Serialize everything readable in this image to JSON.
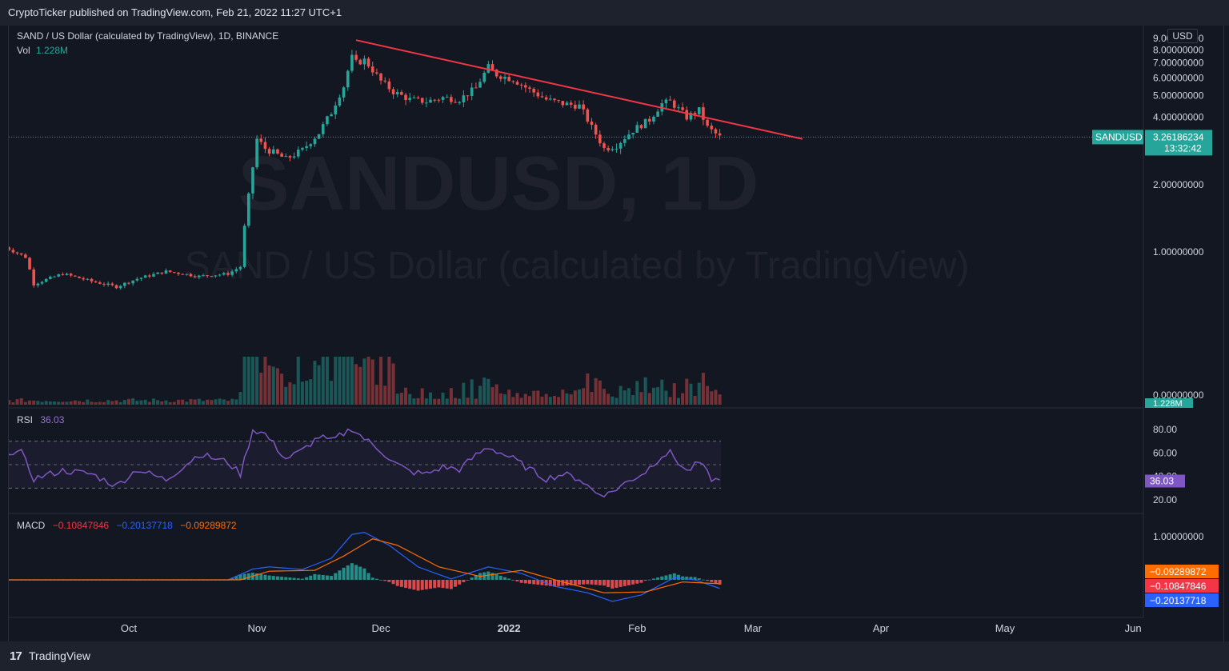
{
  "header": {
    "publish_text": "CryptoTicker published on TradingView.com, Feb 21, 2022 11:27 UTC+1"
  },
  "footer": {
    "brand": "TradingView",
    "logo_glyph": "17"
  },
  "chart_header": {
    "symbol_line": "SAND / US Dollar (calculated by TradingView), 1D, BINANCE",
    "vol_label": "Vol",
    "vol_value": "1.228M",
    "rsi_label": "RSI",
    "rsi_value": "36.03",
    "macd_label": "MACD",
    "macd_values": [
      "−0.10847846",
      "−0.20137718",
      "−0.09289872"
    ],
    "currency_button": "USD"
  },
  "watermark": {
    "line1": "SANDUSD, 1D",
    "line2": "SAND / US Dollar (calculated by TradingView)"
  },
  "colors": {
    "up": "#26a69a",
    "down": "#ef5350",
    "trendline": "#f23645",
    "rsi": "#7e57c2",
    "macd": "#2962ff",
    "signal": "#ff6d00",
    "background": "#131722"
  },
  "chart_data": {
    "type": "candlestick",
    "x_ticks": [
      "Oct",
      "Nov",
      "Dec",
      "2022",
      "Feb",
      "Mar",
      "Apr",
      "May",
      "Jun"
    ],
    "price_axis": {
      "ticks": [
        "9.00000000",
        "8.00000000",
        "7.00000000",
        "6.00000000",
        "5.00000000",
        "4.00000000",
        "2.00000000",
        "1.00000000",
        "0.00000000"
      ],
      "ylim": [
        0,
        9.2
      ],
      "scale": "log"
    },
    "last_price": {
      "symbol": "SANDUSD",
      "price": "3.26186234",
      "countdown": "13:32:42"
    },
    "volume_badge": "1.228M",
    "price_path": [
      [
        "2021-09-01",
        1.05
      ],
      [
        "2021-09-06",
        0.95
      ],
      [
        "2021-09-08",
        0.72
      ],
      [
        "2021-09-15",
        0.8
      ],
      [
        "2021-09-22",
        0.74
      ],
      [
        "2021-09-28",
        0.7
      ],
      [
        "2021-10-03",
        0.76
      ],
      [
        "2021-10-10",
        0.82
      ],
      [
        "2021-10-18",
        0.78
      ],
      [
        "2021-10-25",
        0.8
      ],
      [
        "2021-10-28",
        0.86
      ],
      [
        "2021-10-29",
        1.3
      ],
      [
        "2021-10-30",
        1.8
      ],
      [
        "2021-10-31",
        2.4
      ],
      [
        "2021-11-01",
        3.2
      ],
      [
        "2021-11-03",
        2.9
      ],
      [
        "2021-11-08",
        2.6
      ],
      [
        "2021-11-12",
        2.85
      ],
      [
        "2021-11-16",
        3.4
      ],
      [
        "2021-11-19",
        4.2
      ],
      [
        "2021-11-22",
        5.5
      ],
      [
        "2021-11-24",
        7.4
      ],
      [
        "2021-11-25",
        7.0
      ],
      [
        "2021-11-27",
        7.2
      ],
      [
        "2021-11-29",
        6.5
      ],
      [
        "2021-12-01",
        5.8
      ],
      [
        "2021-12-04",
        5.2
      ],
      [
        "2021-12-08",
        4.8
      ],
      [
        "2021-12-12",
        4.7
      ],
      [
        "2021-12-16",
        4.9
      ],
      [
        "2021-12-20",
        4.8
      ],
      [
        "2021-12-24",
        5.4
      ],
      [
        "2021-12-27",
        6.7
      ],
      [
        "2021-12-29",
        6.2
      ],
      [
        "2022-01-02",
        5.9
      ],
      [
        "2022-01-06",
        5.3
      ],
      [
        "2022-01-10",
        4.8
      ],
      [
        "2022-01-14",
        4.6
      ],
      [
        "2022-01-18",
        4.5
      ],
      [
        "2022-01-21",
        3.6
      ],
      [
        "2022-01-24",
        2.9
      ],
      [
        "2022-01-27",
        3.0
      ],
      [
        "2022-01-31",
        3.5
      ],
      [
        "2022-02-04",
        3.9
      ],
      [
        "2022-02-07",
        4.6
      ],
      [
        "2022-02-09",
        4.7
      ],
      [
        "2022-02-13",
        4.0
      ],
      [
        "2022-02-16",
        4.3
      ],
      [
        "2022-02-18",
        3.6
      ],
      [
        "2022-02-21",
        3.26
      ]
    ],
    "trendline": {
      "start": [
        "2021-11-25",
        8.84
      ],
      "end": [
        "2022-03-13",
        3.2
      ]
    },
    "rsi": {
      "ticks": [
        "80.00",
        "60.00",
        "40.00",
        "20.00"
      ],
      "ylim": [
        20,
        80
      ],
      "bands": [
        30,
        50,
        70
      ],
      "series": [
        [
          "2021-09-01",
          62
        ],
        [
          "2021-09-05",
          60
        ],
        [
          "2021-09-08",
          38
        ],
        [
          "2021-09-15",
          45
        ],
        [
          "2021-09-22",
          42
        ],
        [
          "2021-09-28",
          32
        ],
        [
          "2021-10-03",
          46
        ],
        [
          "2021-10-10",
          37
        ],
        [
          "2021-10-18",
          59
        ],
        [
          "2021-10-25",
          52
        ],
        [
          "2021-10-28",
          42
        ],
        [
          "2021-10-31",
          80
        ],
        [
          "2021-11-03",
          76
        ],
        [
          "2021-11-08",
          55
        ],
        [
          "2021-11-12",
          62
        ],
        [
          "2021-11-16",
          74
        ],
        [
          "2021-11-19",
          70
        ],
        [
          "2021-11-24",
          81
        ],
        [
          "2021-11-27",
          72
        ],
        [
          "2021-12-01",
          62
        ],
        [
          "2021-12-04",
          52
        ],
        [
          "2021-12-08",
          44
        ],
        [
          "2021-12-12",
          42
        ],
        [
          "2021-12-16",
          48
        ],
        [
          "2021-12-20",
          46
        ],
        [
          "2021-12-24",
          58
        ],
        [
          "2021-12-27",
          65
        ],
        [
          "2022-01-02",
          55
        ],
        [
          "2022-01-06",
          46
        ],
        [
          "2022-01-10",
          38
        ],
        [
          "2022-01-14",
          42
        ],
        [
          "2022-01-18",
          38
        ],
        [
          "2022-01-22",
          26
        ],
        [
          "2022-01-25",
          25
        ],
        [
          "2022-01-29",
          34
        ],
        [
          "2022-02-03",
          44
        ],
        [
          "2022-02-07",
          58
        ],
        [
          "2022-02-09",
          60
        ],
        [
          "2022-02-13",
          44
        ],
        [
          "2022-02-16",
          52
        ],
        [
          "2022-02-19",
          38
        ],
        [
          "2022-02-21",
          36.03
        ]
      ]
    },
    "macd": {
      "ticks": [
        "1.00000000"
      ],
      "ylim": [
        -0.5,
        1.5
      ],
      "macd_line": [
        [
          "2021-09-01",
          0.0
        ],
        [
          "2021-10-25",
          0.0
        ],
        [
          "2021-10-31",
          0.25
        ],
        [
          "2021-11-04",
          0.3
        ],
        [
          "2021-11-12",
          0.24
        ],
        [
          "2021-11-19",
          0.5
        ],
        [
          "2021-11-24",
          1.05
        ],
        [
          "2021-11-27",
          1.1
        ],
        [
          "2021-12-03",
          0.8
        ],
        [
          "2021-12-10",
          0.3
        ],
        [
          "2021-12-18",
          0.02
        ],
        [
          "2021-12-27",
          0.3
        ],
        [
          "2022-01-04",
          0.15
        ],
        [
          "2022-01-12",
          -0.15
        ],
        [
          "2022-01-20",
          -0.3
        ],
        [
          "2022-01-26",
          -0.5
        ],
        [
          "2022-02-02",
          -0.35
        ],
        [
          "2022-02-10",
          0.05
        ],
        [
          "2022-02-15",
          0.0
        ],
        [
          "2022-02-21",
          -0.2
        ]
      ],
      "signal_line": [
        [
          "2021-09-01",
          0.0
        ],
        [
          "2021-10-28",
          0.0
        ],
        [
          "2021-11-04",
          0.2
        ],
        [
          "2021-11-15",
          0.22
        ],
        [
          "2021-11-22",
          0.55
        ],
        [
          "2021-11-29",
          0.95
        ],
        [
          "2021-12-05",
          0.8
        ],
        [
          "2021-12-15",
          0.3
        ],
        [
          "2021-12-25",
          0.08
        ],
        [
          "2022-01-04",
          0.22
        ],
        [
          "2022-01-14",
          -0.05
        ],
        [
          "2022-01-24",
          -0.3
        ],
        [
          "2022-02-03",
          -0.28
        ],
        [
          "2022-02-12",
          -0.05
        ],
        [
          "2022-02-21",
          -0.09
        ]
      ],
      "badges": [
        "−0.09289872",
        "−0.10847846",
        "−0.20137718"
      ]
    }
  }
}
